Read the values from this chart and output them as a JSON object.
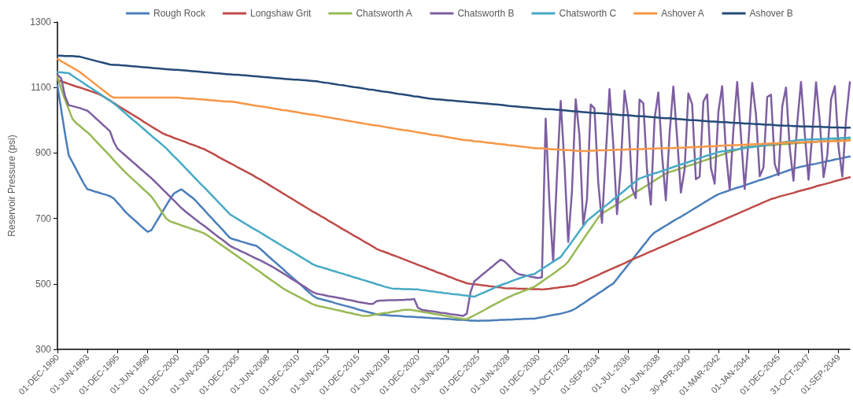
{
  "chart_data": {
    "type": "line",
    "ylabel": "Reservoir Pressure (psi)",
    "ylim": [
      300,
      1300
    ],
    "yticks": [
      300,
      500,
      700,
      900,
      1100,
      1300
    ],
    "categories": [
      "01-DEC-1990",
      null,
      null,
      null,
      null,
      null,
      null,
      null,
      "01-JUN-1993",
      null,
      null,
      null,
      null,
      null,
      null,
      null,
      "01-DEC-1995",
      null,
      null,
      null,
      null,
      null,
      null,
      null,
      "01-JUN-1998",
      null,
      null,
      null,
      null,
      null,
      null,
      null,
      "01-DEC-2000",
      null,
      null,
      null,
      null,
      null,
      null,
      null,
      "01-JUN-2003",
      null,
      null,
      null,
      null,
      null,
      null,
      null,
      "01-DEC-2005",
      null,
      null,
      null,
      null,
      null,
      null,
      null,
      "01-JUN-2008",
      null,
      null,
      null,
      null,
      null,
      null,
      null,
      "01-DEC-2010",
      null,
      null,
      null,
      null,
      null,
      null,
      null,
      "01-JUN-2013",
      null,
      null,
      null,
      null,
      null,
      null,
      null,
      "01-DEC-2015",
      null,
      null,
      null,
      null,
      null,
      null,
      null,
      "01-JUN-2018",
      null,
      null,
      null,
      null,
      null,
      null,
      null,
      "01-DEC-2020",
      null,
      null,
      null,
      null,
      null,
      null,
      null,
      "01-JUN-2023",
      null,
      null,
      null,
      null,
      null,
      null,
      null,
      "01-DEC-2025",
      null,
      null,
      null,
      null,
      null,
      null,
      null,
      "01-JUN-2028",
      null,
      null,
      null,
      null,
      null,
      null,
      null,
      "01-DEC-2030",
      null,
      null,
      null,
      null,
      null,
      null,
      null,
      "31-OCT-2032",
      null,
      null,
      null,
      null,
      null,
      null,
      null,
      "01-SEP-2034",
      null,
      null,
      null,
      null,
      null,
      null,
      null,
      "01-JUL-2036",
      null,
      null,
      null,
      null,
      null,
      null,
      null,
      "01-JUN-2038",
      null,
      null,
      null,
      null,
      null,
      null,
      null,
      "30-APR-2040",
      null,
      null,
      null,
      null,
      null,
      null,
      null,
      "01-MAR-2042",
      null,
      null,
      null,
      null,
      null,
      null,
      null,
      "01-JAN-2044",
      null,
      null,
      null,
      null,
      null,
      null,
      null,
      "01-DEC-2045",
      null,
      null,
      null,
      null,
      null,
      null,
      null,
      "31-OCT-2047",
      null,
      null,
      null,
      null,
      null,
      null,
      null,
      "01-SEP-2049",
      null,
      null,
      null
    ],
    "grid": false,
    "legend": "top",
    "marker": "none",
    "line_style": "solid",
    "series": [
      {
        "name": "Rough Rock",
        "color": "#4a7ebb",
        "values": [
          1107,
          1032,
          960,
          893,
          872,
          850,
          828,
          807,
          789,
          786,
          782,
          779,
          775,
          772,
          768,
          761,
          748,
          735,
          721,
          710,
          700,
          690,
          679,
          669,
          659,
          664,
          683,
          702,
          721,
          740,
          759,
          776,
          783,
          789,
          780,
          771,
          763,
          752,
          739,
          727,
          714,
          702,
          689,
          677,
          665,
          652,
          640,
          636,
          633,
          629,
          626,
          622,
          619,
          616,
          607,
          597,
          586,
          576,
          566,
          556,
          546,
          535,
          525,
          515,
          505,
          495,
          484,
          474,
          464,
          457,
          454,
          451,
          448,
          445,
          441,
          438,
          435,
          432,
          429,
          426,
          422,
          419,
          416,
          413,
          410,
          407,
          405,
          405,
          404,
          403,
          403,
          402,
          401,
          400,
          400,
          399,
          398,
          398,
          397,
          396,
          395,
          395,
          394,
          393,
          393,
          392,
          391,
          390,
          390,
          389,
          388,
          388,
          387,
          388,
          388,
          388,
          389,
          389,
          390,
          390,
          391,
          391,
          392,
          392,
          393,
          393,
          394,
          394,
          396,
          398,
          400,
          403,
          405,
          407,
          409,
          412,
          415,
          419,
          425,
          433,
          440,
          448,
          456,
          463,
          471,
          478,
          486,
          494,
          501,
          515,
          530,
          544,
          559,
          573,
          588,
          602,
          617,
          631,
          646,
          657,
          664,
          671,
          678,
          685,
          692,
          699,
          705,
          712,
          719,
          726,
          733,
          740,
          747,
          754,
          761,
          768,
          774,
          778,
          782,
          786,
          790,
          794,
          797,
          801,
          805,
          809,
          813,
          817,
          820,
          824,
          828,
          832,
          836,
          840,
          844,
          848,
          852,
          855,
          858,
          860,
          863,
          865,
          867,
          870,
          872,
          875,
          877,
          880,
          882,
          884,
          887,
          889
        ]
      },
      {
        "name": "Longshaw Grit",
        "color": "#be4b48",
        "values": [
          1123,
          1119,
          1115,
          1111,
          1107,
          1103,
          1100,
          1096,
          1092,
          1088,
          1084,
          1080,
          1074,
          1067,
          1060,
          1053,
          1045,
          1038,
          1031,
          1024,
          1017,
          1010,
          1003,
          995,
          988,
          981,
          974,
          967,
          960,
          955,
          951,
          946,
          942,
          938,
          934,
          929,
          925,
          921,
          916,
          912,
          906,
          900,
          894,
          887,
          881,
          875,
          869,
          863,
          856,
          850,
          844,
          838,
          832,
          825,
          819,
          812,
          805,
          798,
          791,
          784,
          777,
          770,
          763,
          756,
          749,
          742,
          735,
          728,
          721,
          715,
          708,
          702,
          694,
          688,
          681,
          674,
          667,
          661,
          654,
          647,
          641,
          634,
          627,
          621,
          614,
          607,
          602,
          598,
          594,
          589,
          585,
          581,
          576,
          572,
          567,
          563,
          558,
          554,
          550,
          545,
          541,
          536,
          532,
          528,
          523,
          519,
          514,
          510,
          506,
          502,
          500,
          499,
          498,
          496,
          495,
          493,
          492,
          490,
          489,
          487,
          486,
          486,
          486,
          485,
          485,
          485,
          484,
          484,
          484,
          483,
          484,
          485,
          487,
          488,
          490,
          491,
          493,
          494,
          497,
          502,
          507,
          512,
          517,
          522,
          527,
          533,
          538,
          543,
          548,
          553,
          558,
          563,
          569,
          574,
          579,
          584,
          589,
          594,
          599,
          604,
          609,
          614,
          619,
          624,
          629,
          634,
          639,
          644,
          649,
          654,
          659,
          664,
          669,
          674,
          679,
          684,
          689,
          694,
          699,
          704,
          709,
          714,
          719,
          724,
          729,
          734,
          739,
          744,
          749,
          754,
          759,
          762,
          766,
          769,
          772,
          775,
          778,
          782,
          785,
          788,
          791,
          794,
          798,
          801,
          804,
          807,
          810,
          814,
          817,
          820,
          823,
          826
        ]
      },
      {
        "name": "Chatsworth A",
        "color": "#98b954",
        "values": [
          1134,
          1096,
          1063,
          1034,
          1004,
          991,
          982,
          972,
          963,
          952,
          939,
          927,
          915,
          903,
          891,
          878,
          866,
          854,
          842,
          831,
          820,
          810,
          799,
          788,
          778,
          767,
          751,
          734,
          716,
          699,
          691,
          687,
          683,
          679,
          675,
          671,
          667,
          663,
          659,
          655,
          648,
          640,
          632,
          624,
          616,
          608,
          600,
          592,
          584,
          576,
          568,
          560,
          552,
          544,
          536,
          527,
          519,
          511,
          503,
          495,
          487,
          480,
          474,
          468,
          462,
          456,
          450,
          444,
          438,
          434,
          431,
          429,
          426,
          424,
          421,
          419,
          416,
          413,
          411,
          408,
          406,
          403,
          402,
          403,
          405,
          407,
          409,
          411,
          412,
          414,
          416,
          418,
          420,
          421,
          421,
          419,
          417,
          415,
          413,
          411,
          409,
          407,
          405,
          403,
          401,
          399,
          397,
          395,
          393,
          392,
          398,
          404,
          410,
          416,
          422,
          429,
          435,
          441,
          447,
          453,
          459,
          464,
          469,
          473,
          478,
          482,
          487,
          491,
          499,
          507,
          515,
          523,
          531,
          539,
          548,
          556,
          568,
          585,
          602,
          619,
          636,
          653,
          669,
          686,
          703,
          715,
          722,
          729,
          736,
          744,
          751,
          758,
          765,
          772,
          780,
          787,
          794,
          801,
          808,
          816,
          823,
          830,
          837,
          842,
          845,
          849,
          853,
          857,
          861,
          864,
          868,
          872,
          876,
          880,
          883,
          887,
          891,
          895,
          899,
          903,
          906,
          910,
          914,
          918,
          919,
          920,
          920,
          921,
          922,
          923,
          924,
          924,
          926,
          927,
          927,
          928,
          929,
          930,
          931,
          931,
          932,
          933,
          934,
          935,
          935,
          936,
          937,
          938,
          939,
          939,
          940,
          941
        ]
      },
      {
        "name": "Chatsworth B",
        "color": "#7d5fa0",
        "values": [
          1139,
          1128,
          1074,
          1046,
          1043,
          1040,
          1037,
          1033,
          1029,
          1019,
          1008,
          998,
          987,
          977,
          966,
          934,
          913,
          903,
          893,
          883,
          873,
          863,
          853,
          843,
          833,
          823,
          812,
          801,
          789,
          778,
          766,
          755,
          743,
          732,
          722,
          713,
          704,
          695,
          686,
          678,
          669,
          660,
          651,
          642,
          634,
          625,
          616,
          610,
          605,
          599,
          594,
          588,
          583,
          577,
          572,
          566,
          560,
          554,
          547,
          540,
          533,
          526,
          518,
          511,
          504,
          497,
          490,
          482,
          475,
          470,
          468,
          466,
          463,
          461,
          459,
          457,
          455,
          452,
          450,
          448,
          445,
          443,
          441,
          439,
          439,
          447,
          449,
          449,
          450,
          450,
          450,
          451,
          451,
          452,
          452,
          454,
          427,
          421,
          419,
          417,
          416,
          414,
          412,
          411,
          409,
          407,
          406,
          404,
          402,
          409,
          475,
          508,
          517,
          527,
          536,
          546,
          555,
          565,
          574,
          569,
          558,
          546,
          535,
          529,
          527,
          525,
          522,
          520,
          518,
          520,
          1005,
          748,
          567,
          828,
          1059,
          867,
          628,
          782,
          1064,
          954,
          679,
          758,
          1048,
          1036,
          810,
          686,
          891,
          1095,
          926,
          713,
          857,
          1090,
          1012,
          793,
          762,
          1063,
          1052,
          847,
          742,
          1004,
          1085,
          894,
          755,
          959,
          1103,
          947,
          779,
          850,
          1082,
          1049,
          820,
          827,
          1057,
          1079,
          855,
          806,
          1026,
          1104,
          903,
          787,
          972,
          1117,
          953,
          790,
          934,
          1114,
          1018,
          829,
          855,
          1071,
          1078,
          866,
          832,
          1042,
          1100,
          914,
          815,
          993,
          1117,
          958,
          818,
          958,
          1116,
          996,
          826,
          894,
          1064,
          1104,
          917,
          828,
          1005,
          1116
        ]
      },
      {
        "name": "Chatsworth C",
        "color": "#46aac5",
        "values": [
          1147,
          1146,
          1145,
          1144,
          1136,
          1128,
          1121,
          1113,
          1105,
          1098,
          1090,
          1083,
          1075,
          1067,
          1060,
          1051,
          1042,
          1032,
          1022,
          1012,
          1002,
          993,
          983,
          973,
          963,
          953,
          943,
          934,
          924,
          914,
          902,
          890,
          879,
          867,
          855,
          843,
          831,
          819,
          807,
          796,
          784,
          772,
          760,
          748,
          736,
          724,
          712,
          705,
          698,
          691,
          684,
          677,
          670,
          664,
          657,
          650,
          643,
          636,
          629,
          622,
          615,
          608,
          602,
          595,
          588,
          581,
          574,
          567,
          560,
          555,
          552,
          548,
          545,
          541,
          538,
          534,
          531,
          527,
          524,
          520,
          517,
          513,
          510,
          506,
          503,
          499,
          496,
          492,
          489,
          486,
          485,
          485,
          484,
          484,
          484,
          483,
          483,
          481,
          480,
          478,
          477,
          475,
          474,
          472,
          471,
          469,
          468,
          467,
          465,
          464,
          462,
          461,
          466,
          471,
          476,
          481,
          486,
          492,
          496,
          500,
          504,
          509,
          513,
          517,
          521,
          525,
          528,
          530,
          538,
          545,
          553,
          560,
          568,
          575,
          582,
          598,
          613,
          629,
          645,
          661,
          676,
          692,
          702,
          711,
          721,
          730,
          739,
          748,
          758,
          767,
          776,
          785,
          795,
          804,
          813,
          822,
          826,
          830,
          834,
          838,
          841,
          845,
          849,
          853,
          857,
          861,
          865,
          868,
          872,
          876,
          880,
          884,
          888,
          892,
          895,
          899,
          903,
          905,
          906,
          908,
          910,
          911,
          913,
          915,
          917,
          918,
          920,
          922,
          923,
          925,
          927,
          929,
          930,
          932,
          934,
          935,
          937,
          939,
          940,
          940,
          941,
          941,
          942,
          942,
          943,
          943,
          944,
          944,
          945,
          946,
          946,
          947
        ]
      },
      {
        "name": "Ashover A",
        "color": "#f79646",
        "values": [
          1187,
          1180,
          1174,
          1167,
          1161,
          1154,
          1147,
          1138,
          1129,
          1120,
          1111,
          1102,
          1093,
          1084,
          1075,
          1069,
          1069,
          1069,
          1069,
          1069,
          1069,
          1069,
          1069,
          1069,
          1069,
          1069,
          1069,
          1069,
          1069,
          1069,
          1069,
          1069,
          1069,
          1068,
          1067,
          1066,
          1066,
          1065,
          1064,
          1063,
          1062,
          1061,
          1060,
          1059,
          1058,
          1057,
          1057,
          1056,
          1054,
          1052,
          1050,
          1048,
          1046,
          1044,
          1043,
          1041,
          1039,
          1037,
          1035,
          1033,
          1031,
          1030,
          1028,
          1026,
          1024,
          1022,
          1020,
          1018,
          1017,
          1015,
          1013,
          1011,
          1009,
          1007,
          1005,
          1003,
          1001,
          999,
          997,
          995,
          993,
          991,
          989,
          987,
          985,
          984,
          982,
          980,
          978,
          976,
          974,
          972,
          970,
          969,
          967,
          965,
          963,
          961,
          959,
          957,
          955,
          954,
          952,
          950,
          948,
          946,
          944,
          942,
          940,
          939,
          938,
          936,
          935,
          934,
          932,
          931,
          930,
          928,
          927,
          926,
          924,
          923,
          922,
          920,
          919,
          918,
          916,
          915,
          914,
          914,
          913,
          912,
          911,
          911,
          910,
          909,
          909,
          908,
          907,
          906,
          906,
          906,
          907,
          907,
          908,
          908,
          908,
          909,
          909,
          910,
          910,
          910,
          911,
          911,
          911,
          912,
          912,
          913,
          913,
          913,
          914,
          914,
          915,
          915,
          915,
          916,
          916,
          916,
          917,
          918,
          918,
          919,
          919,
          920,
          920,
          921,
          922,
          922,
          923,
          923,
          924,
          924,
          925,
          925,
          926,
          926,
          927,
          927,
          928,
          928,
          929,
          929,
          930,
          931,
          932,
          932,
          932,
          933,
          933,
          933,
          934,
          934,
          934,
          935,
          935,
          935,
          936,
          936,
          936,
          937,
          937,
          938
        ]
      },
      {
        "name": "Ashover B",
        "color": "#254a78",
        "values": [
          1197,
          1197,
          1196,
          1196,
          1196,
          1195,
          1194,
          1191,
          1188,
          1185,
          1182,
          1179,
          1176,
          1173,
          1170,
          1169,
          1169,
          1168,
          1167,
          1166,
          1165,
          1164,
          1163,
          1162,
          1161,
          1160,
          1159,
          1158,
          1157,
          1156,
          1155,
          1154,
          1154,
          1153,
          1152,
          1151,
          1150,
          1149,
          1148,
          1147,
          1146,
          1145,
          1144,
          1143,
          1142,
          1141,
          1140,
          1139,
          1139,
          1138,
          1137,
          1136,
          1135,
          1134,
          1133,
          1132,
          1131,
          1130,
          1129,
          1128,
          1127,
          1126,
          1125,
          1124,
          1124,
          1123,
          1122,
          1121,
          1120,
          1119,
          1117,
          1115,
          1114,
          1112,
          1110,
          1108,
          1107,
          1105,
          1103,
          1101,
          1100,
          1098,
          1096,
          1094,
          1093,
          1091,
          1089,
          1087,
          1086,
          1084,
          1082,
          1080,
          1079,
          1077,
          1075,
          1073,
          1072,
          1070,
          1068,
          1066,
          1065,
          1064,
          1063,
          1062,
          1061,
          1060,
          1059,
          1058,
          1057,
          1056,
          1055,
          1054,
          1053,
          1052,
          1051,
          1050,
          1049,
          1048,
          1047,
          1046,
          1044,
          1043,
          1042,
          1041,
          1040,
          1039,
          1038,
          1037,
          1036,
          1035,
          1034,
          1034,
          1033,
          1032,
          1031,
          1030,
          1029,
          1028,
          1027,
          1026,
          1025,
          1024,
          1023,
          1022,
          1022,
          1021,
          1020,
          1019,
          1018,
          1017,
          1016,
          1016,
          1015,
          1014,
          1013,
          1012,
          1012,
          1011,
          1010,
          1009,
          1008,
          1007,
          1006,
          1006,
          1005,
          1004,
          1003,
          1002,
          1001,
          1000,
          1000,
          999,
          998,
          997,
          996,
          996,
          995,
          994,
          994,
          993,
          992,
          992,
          991,
          990,
          990,
          989,
          988,
          988,
          987,
          986,
          986,
          985,
          984,
          984,
          983,
          983,
          982,
          982,
          981,
          981,
          981,
          980,
          980,
          980,
          979,
          979,
          978,
          978,
          978,
          977,
          977,
          977
        ]
      }
    ]
  }
}
